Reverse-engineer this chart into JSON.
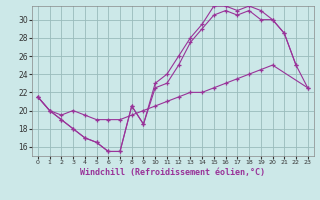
{
  "background_color": "#cce8e8",
  "grid_color": "#99bbbb",
  "line_color": "#993399",
  "xlim": [
    -0.5,
    23.5
  ],
  "ylim": [
    15,
    31.5
  ],
  "yticks": [
    16,
    18,
    20,
    22,
    24,
    26,
    28,
    30
  ],
  "xticks": [
    0,
    1,
    2,
    3,
    4,
    5,
    6,
    7,
    8,
    9,
    10,
    11,
    12,
    13,
    14,
    15,
    16,
    17,
    18,
    19,
    20,
    21,
    22,
    23
  ],
  "xlabel": "Windchill (Refroidissement éolien,°C)",
  "line1_x": [
    0,
    1,
    2,
    3,
    4,
    5,
    6,
    7,
    8,
    9,
    10,
    11,
    12,
    13,
    14,
    15,
    16,
    17,
    18,
    19,
    20,
    21,
    22,
    23
  ],
  "line1_y": [
    21.5,
    20.0,
    19.0,
    18.0,
    17.0,
    16.5,
    15.5,
    15.5,
    20.5,
    18.5,
    22.5,
    23.0,
    25.0,
    27.5,
    29.0,
    30.5,
    31.0,
    30.5,
    31.0,
    30.0,
    30.0,
    28.5,
    25.0,
    22.5
  ],
  "line2_x": [
    0,
    1,
    2,
    3,
    4,
    5,
    6,
    7,
    8,
    9,
    10,
    11,
    12,
    13,
    14,
    15,
    16,
    17,
    18,
    19,
    20,
    21,
    22
  ],
  "line2_y": [
    21.5,
    20.0,
    19.0,
    18.0,
    17.0,
    16.5,
    15.5,
    15.5,
    20.5,
    18.5,
    23.0,
    24.0,
    26.0,
    28.0,
    29.5,
    31.5,
    31.5,
    31.0,
    31.5,
    31.0,
    30.0,
    28.5,
    25.0
  ],
  "line3_x": [
    0,
    1,
    2,
    3,
    4,
    5,
    6,
    7,
    8,
    9,
    10,
    11,
    12,
    13,
    14,
    15,
    16,
    17,
    18,
    19,
    20,
    23
  ],
  "line3_y": [
    21.5,
    20.0,
    19.5,
    20.0,
    19.5,
    19.0,
    19.0,
    19.0,
    19.5,
    20.0,
    20.5,
    21.0,
    21.5,
    22.0,
    22.0,
    22.5,
    23.0,
    23.5,
    24.0,
    24.5,
    25.0,
    22.5
  ]
}
